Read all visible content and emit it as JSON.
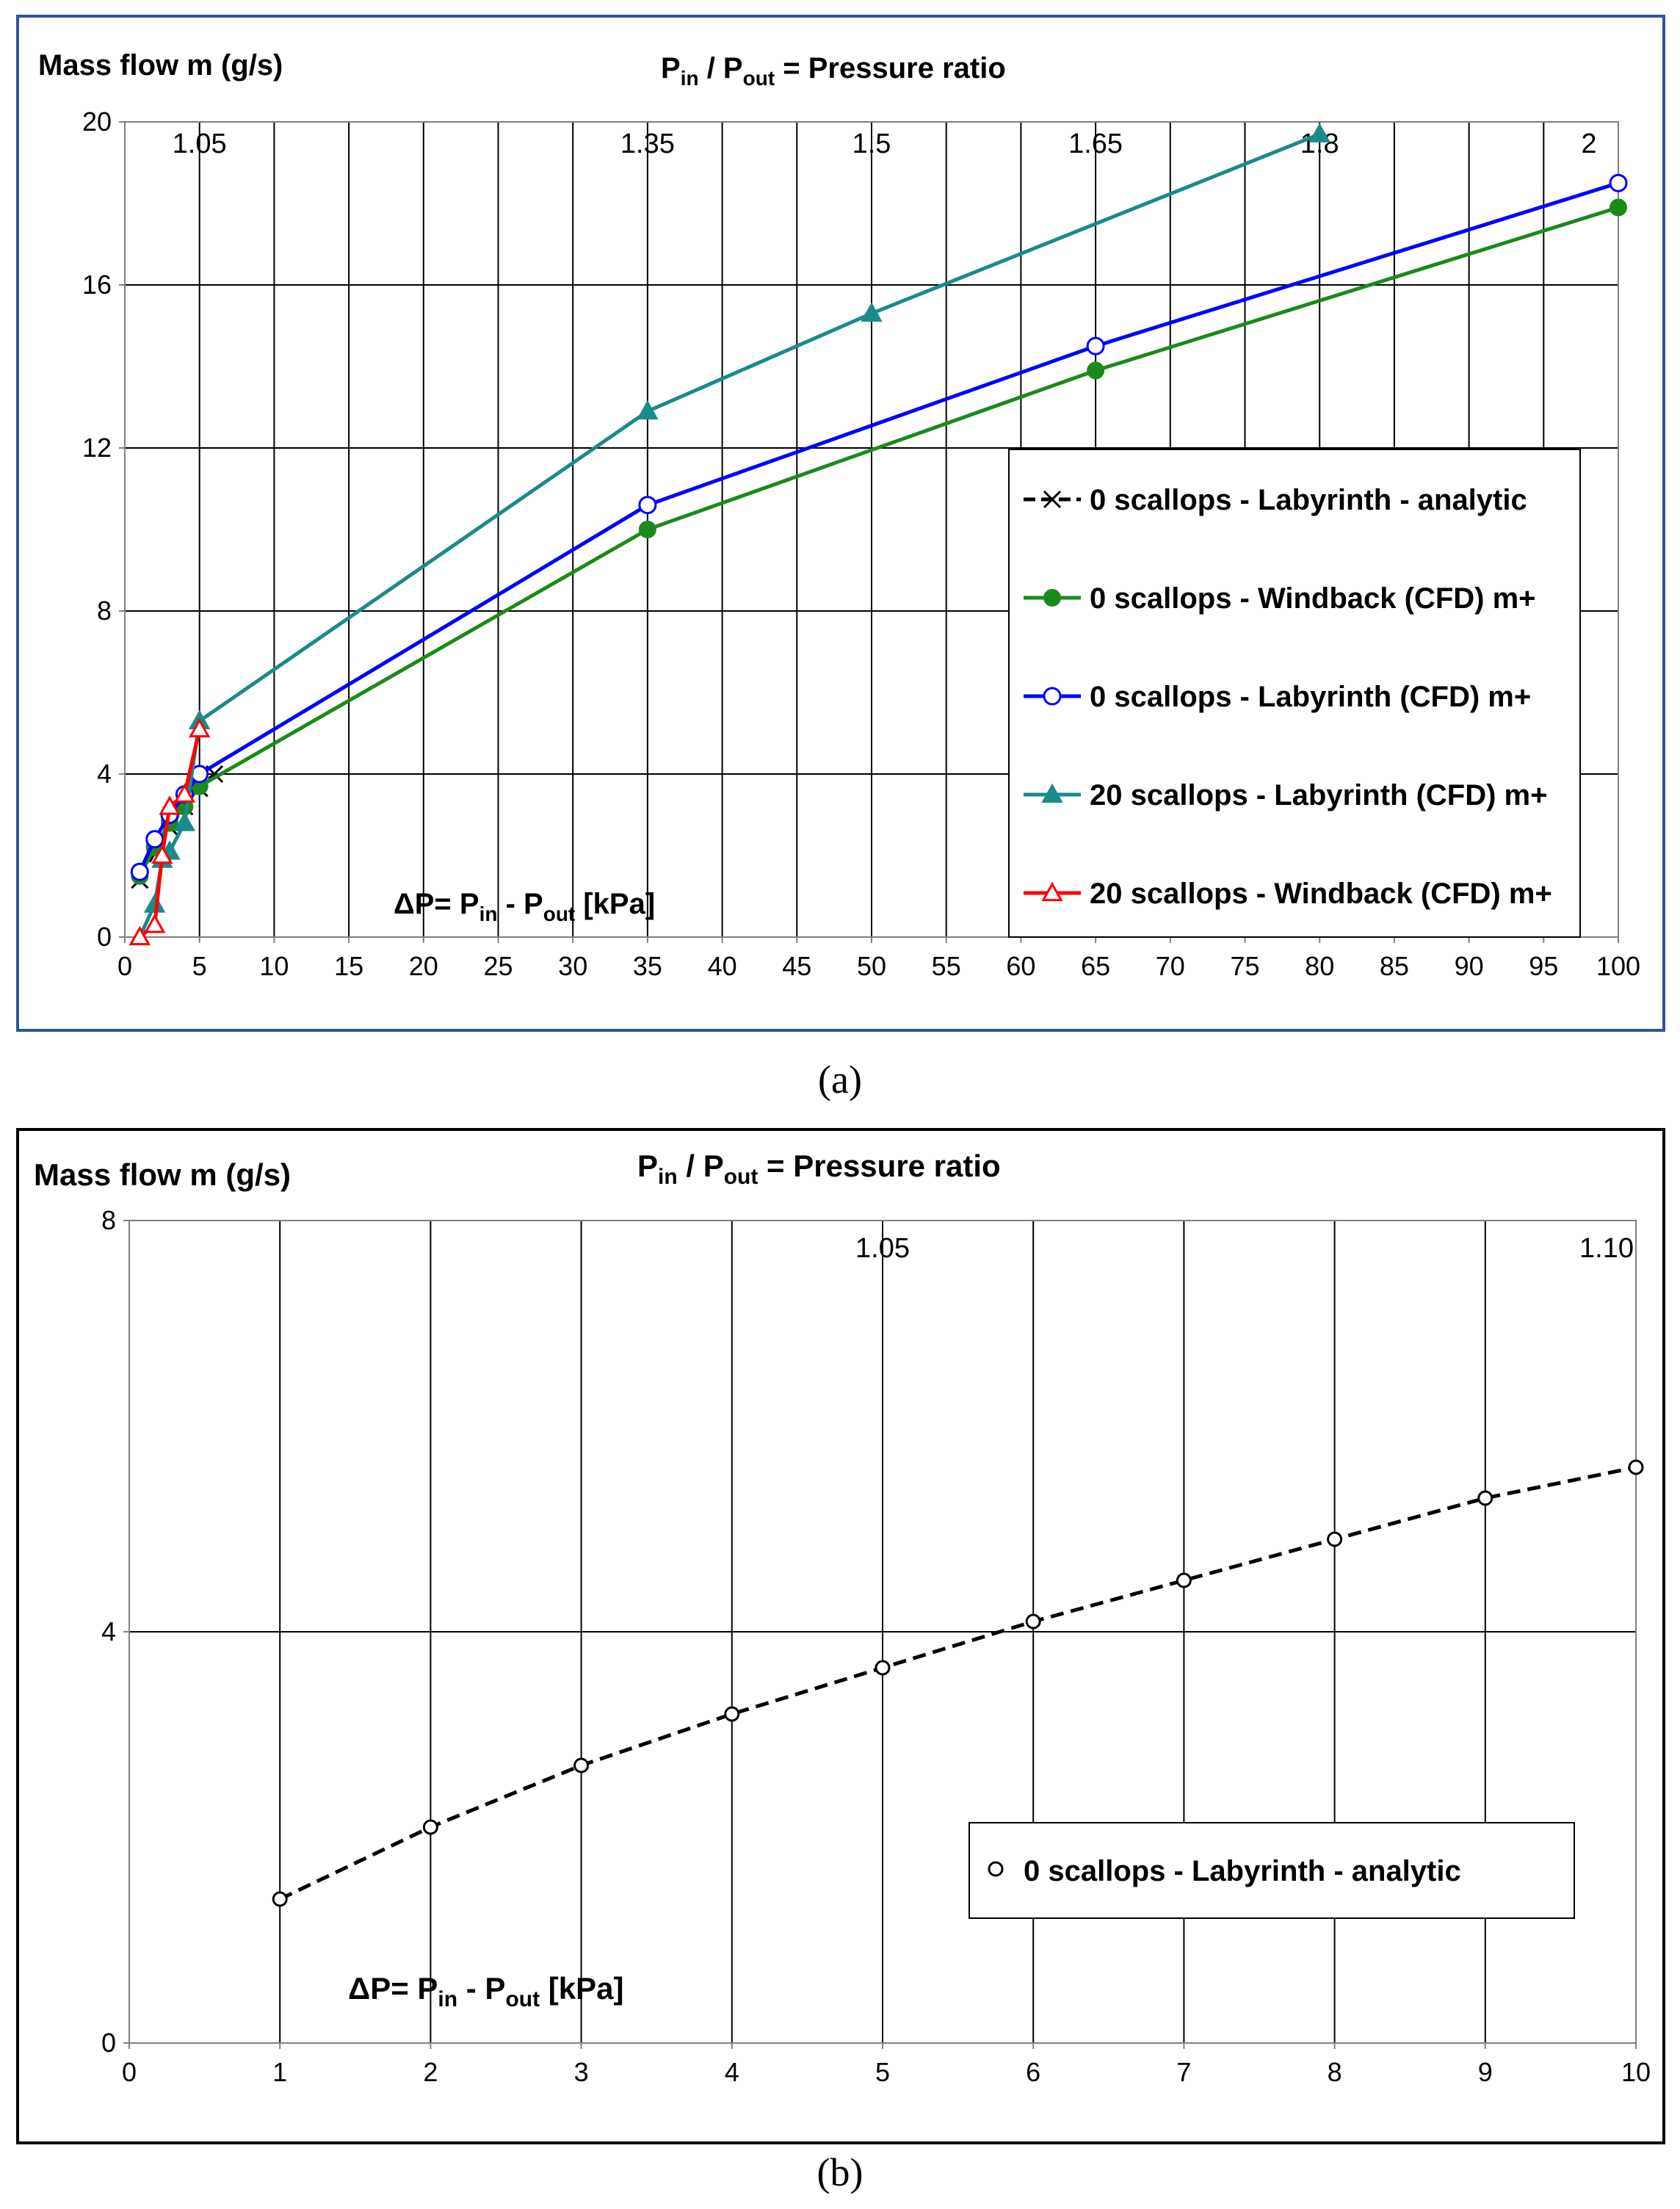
{
  "chart_data": [
    {
      "type": "line",
      "panel_label": "(a)",
      "ylabel": "Mass flow m (g/s)",
      "top_axis_title": {
        "p1": "P",
        "s1": "in",
        "mid": " / P",
        "s2": "out",
        "end": " = Pressure ratio"
      },
      "xlabel": {
        "pre": "ΔP= P",
        "s1": "in",
        "mid": " - P",
        "s2": "out",
        "end": " [kPa]"
      },
      "xlim": [
        0,
        100
      ],
      "ylim": [
        0,
        20
      ],
      "x_ticks": [
        "0",
        "5",
        "10",
        "15",
        "20",
        "25",
        "30",
        "35",
        "40",
        "45",
        "50",
        "55",
        "60",
        "65",
        "70",
        "75",
        "80",
        "85",
        "90",
        "95",
        "100"
      ],
      "y_ticks": [
        "0",
        "4",
        "8",
        "12",
        "16",
        "20"
      ],
      "pressure_ratio_labels": [
        {
          "x": 5,
          "label": "1.05"
        },
        {
          "x": 35,
          "label": "1.35"
        },
        {
          "x": 50,
          "label": "1.5"
        },
        {
          "x": 65,
          "label": "1.65"
        },
        {
          "x": 80,
          "label": "1.8"
        },
        {
          "x": 100,
          "label": "2"
        }
      ],
      "series": [
        {
          "name": "0 scallops - Labyrinth - analytic",
          "color": "#000000",
          "marker": "x",
          "dashed": true,
          "x": [
            1,
            2,
            3,
            4,
            5,
            6
          ],
          "y": [
            1.4,
            2.1,
            2.7,
            3.2,
            3.65,
            4.0
          ]
        },
        {
          "name": "0 scallops - Windback (CFD) m+",
          "color": "#1a8a1a",
          "marker": "filled-circle",
          "dashed": false,
          "x": [
            1,
            2,
            3,
            4,
            5,
            35,
            65,
            100
          ],
          "y": [
            1.5,
            2.2,
            2.8,
            3.2,
            3.7,
            10.0,
            13.9,
            17.9
          ]
        },
        {
          "name": "0 scallops - Labyrinth (CFD) m+",
          "color": "#0000ff",
          "marker": "open-circle",
          "dashed": false,
          "x": [
            1,
            2,
            3,
            4,
            5,
            35,
            65,
            100
          ],
          "y": [
            1.6,
            2.4,
            3.0,
            3.5,
            4.0,
            10.6,
            14.5,
            18.5
          ]
        },
        {
          "name": "20 scallops - Labyrinth (CFD) m+",
          "color": "#1a8a8a",
          "marker": "filled-triangle",
          "dashed": false,
          "x": [
            1,
            2,
            2.5,
            3,
            4,
            5,
            35,
            50,
            80
          ],
          "y": [
            0.0,
            0.8,
            1.9,
            2.1,
            2.8,
            5.3,
            12.9,
            15.3,
            19.7
          ]
        },
        {
          "name": "20 scallops - Windback (CFD) m+",
          "color": "#ff0000",
          "marker": "open-triangle",
          "dashed": false,
          "x": [
            1,
            2,
            2.5,
            3,
            4,
            5
          ],
          "y": [
            0.0,
            0.3,
            2.0,
            3.2,
            3.5,
            5.1
          ]
        }
      ]
    },
    {
      "type": "line",
      "panel_label": "(b)",
      "ylabel": "Mass flow m (g/s)",
      "top_axis_title": {
        "p1": "P",
        "s1": "in",
        "mid": " / P",
        "s2": "out",
        "end": " = Pressure ratio"
      },
      "xlabel": {
        "pre": "ΔP= P",
        "s1": "in",
        "mid": " - P",
        "s2": "out",
        "end": " [kPa]"
      },
      "xlim": [
        0,
        10
      ],
      "ylim": [
        0,
        8
      ],
      "x_ticks": [
        "0",
        "1",
        "2",
        "3",
        "4",
        "5",
        "6",
        "7",
        "8",
        "9",
        "10"
      ],
      "y_ticks": [
        "0",
        "4",
        "8"
      ],
      "pressure_ratio_labels": [
        {
          "x": 5,
          "label": "1.05"
        },
        {
          "x": 10,
          "label": "1.10"
        }
      ],
      "series": [
        {
          "name": "0 scallops - Labyrinth - analytic",
          "color": "#000000",
          "marker": "open-circle",
          "dashed": true,
          "x": [
            1,
            2,
            3,
            4,
            5,
            6,
            7,
            8,
            9,
            10
          ],
          "y": [
            1.4,
            2.1,
            2.7,
            3.2,
            3.65,
            4.1,
            4.5,
            4.9,
            5.3,
            5.6
          ]
        }
      ]
    }
  ]
}
